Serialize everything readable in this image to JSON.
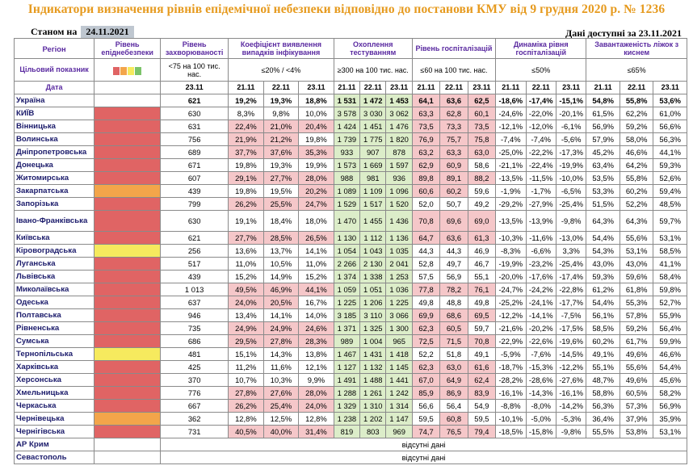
{
  "title": "Індикатори визначення рівнів епідемічної небезпеки відповідно до постанови КМУ від 9 грудня 2020 р. № 1236",
  "as_of_label": "Станом на",
  "as_of_date": "24.11.2021",
  "data_available_label": "Дані доступні за",
  "data_available_date": "23.11.2021",
  "headers": {
    "region": "Регіон",
    "target": "Цільовий показник",
    "date": "Дата",
    "level": "Рівень епіднебезпеки",
    "incidence": "Рівень захворюваності",
    "detection": "Коефіцієнт виявлення випадків інфікування",
    "testing": "Охоплення тестуванням",
    "hosp": "Рівень госпіталізацій",
    "dyn": "Динаміка рівня госпіталізацій",
    "beds": "Завантаженість ліжок з киснем"
  },
  "targets": {
    "incidence": "<75 на 100 тис. нас.",
    "detection": "≤20% / <4%",
    "testing": "≥300 на 100 тис. нас.",
    "hosp": "≤60 на 100 тис. нас.",
    "dyn": "≤50%",
    "beds": "≤65%"
  },
  "level_legend_colors": [
    "#e06464",
    "#f3a54a",
    "#f6ea5e",
    "#7cc36a"
  ],
  "dates": {
    "incidence": "23.11",
    "three": [
      "21.11",
      "22.11",
      "23.11"
    ]
  },
  "missing_text": "відсутні дані",
  "rows": [
    {
      "name": "Україна",
      "level": "",
      "inc": "621",
      "det": [
        "19,2%",
        "19,3%",
        "18,8%"
      ],
      "test": [
        "1 531",
        "1 472",
        "1 453"
      ],
      "hosp": [
        "64,1",
        "63,6",
        "62,5"
      ],
      "dyn": [
        "-18,6%",
        "-17,4%",
        "-15,1%"
      ],
      "beds": [
        "54,8%",
        "55,8%",
        "53,6%"
      ]
    },
    {
      "name": "КИЇВ",
      "level": "red",
      "inc": "630",
      "det": [
        "8,3%",
        "9,8%",
        "10,0%"
      ],
      "test": [
        "3 578",
        "3 030",
        "3 062"
      ],
      "hosp": [
        "63,3",
        "62,8",
        "60,1"
      ],
      "dyn": [
        "-24,6%",
        "-22,0%",
        "-20,1%"
      ],
      "beds": [
        "61,5%",
        "62,2%",
        "61,0%"
      ]
    },
    {
      "name": "Вінницька",
      "level": "red",
      "inc": "631",
      "det": [
        "22,4%",
        "21,0%",
        "20,4%"
      ],
      "test": [
        "1 424",
        "1 451",
        "1 476"
      ],
      "hosp": [
        "73,5",
        "73,3",
        "73,5"
      ],
      "dyn": [
        "-12,1%",
        "-12,0%",
        "-6,1%"
      ],
      "beds": [
        "56,9%",
        "59,2%",
        "56,6%"
      ]
    },
    {
      "name": "Волинська",
      "level": "red",
      "inc": "756",
      "det": [
        "21,9%",
        "21,2%",
        "19,8%"
      ],
      "test": [
        "1 739",
        "1 775",
        "1 820"
      ],
      "hosp": [
        "76,9",
        "75,7",
        "75,8"
      ],
      "dyn": [
        "-7,4%",
        "-7,4%",
        "-5,6%"
      ],
      "beds": [
        "57,9%",
        "58,0%",
        "56,3%"
      ]
    },
    {
      "name": "Дніпропетровська",
      "level": "red",
      "inc": "689",
      "det": [
        "37,7%",
        "37,6%",
        "35,3%"
      ],
      "test": [
        "933",
        "907",
        "878"
      ],
      "hosp": [
        "63,2",
        "63,3",
        "63,0"
      ],
      "dyn": [
        "-25,0%",
        "-22,2%",
        "-17,3%"
      ],
      "beds": [
        "45,2%",
        "46,6%",
        "44,1%"
      ]
    },
    {
      "name": "Донецька",
      "level": "red",
      "inc": "671",
      "det": [
        "19,8%",
        "19,3%",
        "19,9%"
      ],
      "test": [
        "1 573",
        "1 669",
        "1 597"
      ],
      "hosp": [
        "62,9",
        "60,9",
        "58,6"
      ],
      "dyn": [
        "-21,1%",
        "-22,4%",
        "-19,9%"
      ],
      "beds": [
        "63,4%",
        "64,2%",
        "59,3%"
      ]
    },
    {
      "name": "Житомирська",
      "level": "red",
      "inc": "607",
      "det": [
        "29,1%",
        "27,7%",
        "28,0%"
      ],
      "test": [
        "988",
        "981",
        "936"
      ],
      "hosp": [
        "89,8",
        "89,1",
        "88,2"
      ],
      "dyn": [
        "-13,5%",
        "-11,5%",
        "-10,0%"
      ],
      "beds": [
        "53,5%",
        "55,8%",
        "52,6%"
      ]
    },
    {
      "name": "Закарпатська",
      "level": "orange",
      "inc": "439",
      "det": [
        "19,8%",
        "19,5%",
        "20,2%"
      ],
      "test": [
        "1 089",
        "1 109",
        "1 096"
      ],
      "hosp": [
        "60,6",
        "60,2",
        "59,6"
      ],
      "dyn": [
        "-1,9%",
        "-1,7%",
        "-6,5%"
      ],
      "beds": [
        "53,3%",
        "60,2%",
        "59,4%"
      ]
    },
    {
      "name": "Запорізька",
      "level": "red",
      "inc": "799",
      "det": [
        "26,2%",
        "25,5%",
        "24,7%"
      ],
      "test": [
        "1 529",
        "1 517",
        "1 520"
      ],
      "hosp": [
        "52,0",
        "50,7",
        "49,2"
      ],
      "dyn": [
        "-29,2%",
        "-27,9%",
        "-25,4%"
      ],
      "beds": [
        "51,5%",
        "52,2%",
        "48,5%"
      ]
    },
    {
      "name": "Івано-Франківська",
      "level": "red",
      "inc": "630",
      "det": [
        "19,1%",
        "18,4%",
        "18,0%"
      ],
      "test": [
        "1 470",
        "1 455",
        "1 436"
      ],
      "hosp": [
        "70,8",
        "69,6",
        "69,0"
      ],
      "dyn": [
        "-13,5%",
        "-13,9%",
        "-9,8%"
      ],
      "beds": [
        "64,3%",
        "64,3%",
        "59,7%"
      ],
      "tall": true
    },
    {
      "name": "Київська",
      "level": "red",
      "inc": "621",
      "det": [
        "27,7%",
        "28,5%",
        "26,5%"
      ],
      "test": [
        "1 130",
        "1 112",
        "1 136"
      ],
      "hosp": [
        "64,7",
        "63,6",
        "61,3"
      ],
      "dyn": [
        "-10,3%",
        "-11,6%",
        "-13,0%"
      ],
      "beds": [
        "54,4%",
        "55,6%",
        "53,1%"
      ]
    },
    {
      "name": "Кіровоградська",
      "level": "yellow",
      "inc": "256",
      "det": [
        "13,6%",
        "13,7%",
        "14,1%"
      ],
      "test": [
        "1 054",
        "1 043",
        "1 035"
      ],
      "hosp": [
        "44,3",
        "44,3",
        "46,9"
      ],
      "dyn": [
        "-8,3%",
        "-6,6%",
        "3,3%"
      ],
      "beds": [
        "54,3%",
        "53,1%",
        "58,5%"
      ]
    },
    {
      "name": "Луганська",
      "level": "red",
      "inc": "517",
      "det": [
        "11,0%",
        "10,5%",
        "11,0%"
      ],
      "test": [
        "2 266",
        "2 130",
        "2 041"
      ],
      "hosp": [
        "52,8",
        "49,7",
        "46,7"
      ],
      "dyn": [
        "-19,9%",
        "-23,2%",
        "-25,4%"
      ],
      "beds": [
        "43,0%",
        "43,0%",
        "41,1%"
      ]
    },
    {
      "name": "Львівська",
      "level": "red",
      "inc": "439",
      "det": [
        "15,2%",
        "14,9%",
        "15,2%"
      ],
      "test": [
        "1 374",
        "1 338",
        "1 253"
      ],
      "hosp": [
        "57,5",
        "56,9",
        "55,1"
      ],
      "dyn": [
        "-20,0%",
        "-17,6%",
        "-17,4%"
      ],
      "beds": [
        "59,3%",
        "59,6%",
        "58,4%"
      ]
    },
    {
      "name": "Миколаївська",
      "level": "red",
      "inc": "1 013",
      "det": [
        "49,5%",
        "46,9%",
        "44,1%"
      ],
      "test": [
        "1 059",
        "1 051",
        "1 036"
      ],
      "hosp": [
        "77,8",
        "78,2",
        "76,1"
      ],
      "dyn": [
        "-24,7%",
        "-24,2%",
        "-22,8%"
      ],
      "beds": [
        "61,2%",
        "61,8%",
        "59,8%"
      ]
    },
    {
      "name": "Одеська",
      "level": "red",
      "inc": "637",
      "det": [
        "24,0%",
        "20,5%",
        "16,7%"
      ],
      "test": [
        "1 225",
        "1 206",
        "1 225"
      ],
      "hosp": [
        "49,8",
        "48,8",
        "49,8"
      ],
      "dyn": [
        "-25,2%",
        "-24,1%",
        "-17,7%"
      ],
      "beds": [
        "54,4%",
        "55,3%",
        "52,7%"
      ]
    },
    {
      "name": "Полтавська",
      "level": "red",
      "inc": "946",
      "det": [
        "13,4%",
        "14,1%",
        "14,0%"
      ],
      "test": [
        "3 185",
        "3 110",
        "3 066"
      ],
      "hosp": [
        "69,9",
        "68,6",
        "69,5"
      ],
      "dyn": [
        "-12,2%",
        "-14,1%",
        "-7,5%"
      ],
      "beds": [
        "56,1%",
        "57,8%",
        "55,9%"
      ]
    },
    {
      "name": "Рівненська",
      "level": "red",
      "inc": "735",
      "det": [
        "24,9%",
        "24,9%",
        "24,6%"
      ],
      "test": [
        "1 371",
        "1 325",
        "1 300"
      ],
      "hosp": [
        "62,3",
        "60,5",
        "59,7"
      ],
      "dyn": [
        "-21,6%",
        "-20,2%",
        "-17,5%"
      ],
      "beds": [
        "58,5%",
        "59,2%",
        "56,4%"
      ]
    },
    {
      "name": "Сумська",
      "level": "red",
      "inc": "686",
      "det": [
        "29,5%",
        "27,8%",
        "28,3%"
      ],
      "test": [
        "989",
        "1 004",
        "965"
      ],
      "hosp": [
        "72,5",
        "71,5",
        "70,8"
      ],
      "dyn": [
        "-22,9%",
        "-22,6%",
        "-19,6%"
      ],
      "beds": [
        "60,2%",
        "61,7%",
        "59,9%"
      ]
    },
    {
      "name": "Тернопільська",
      "level": "yellow",
      "inc": "481",
      "det": [
        "15,1%",
        "14,3%",
        "13,8%"
      ],
      "test": [
        "1 467",
        "1 431",
        "1 418"
      ],
      "hosp": [
        "52,2",
        "51,8",
        "49,1"
      ],
      "dyn": [
        "-5,9%",
        "-7,6%",
        "-14,5%"
      ],
      "beds": [
        "49,1%",
        "49,6%",
        "46,6%"
      ]
    },
    {
      "name": "Харківська",
      "level": "red",
      "inc": "425",
      "det": [
        "11,2%",
        "11,6%",
        "12,1%"
      ],
      "test": [
        "1 127",
        "1 132",
        "1 145"
      ],
      "hosp": [
        "62,3",
        "63,0",
        "61,6"
      ],
      "dyn": [
        "-18,7%",
        "-15,3%",
        "-12,2%"
      ],
      "beds": [
        "55,1%",
        "55,6%",
        "54,4%"
      ]
    },
    {
      "name": "Херсонська",
      "level": "red",
      "inc": "370",
      "det": [
        "10,7%",
        "10,3%",
        "9,9%"
      ],
      "test": [
        "1 491",
        "1 488",
        "1 441"
      ],
      "hosp": [
        "67,0",
        "64,9",
        "62,4"
      ],
      "dyn": [
        "-28,2%",
        "-28,6%",
        "-27,6%"
      ],
      "beds": [
        "48,7%",
        "49,6%",
        "45,6%"
      ]
    },
    {
      "name": "Хмельницька",
      "level": "red",
      "inc": "776",
      "det": [
        "27,8%",
        "27,6%",
        "28,0%"
      ],
      "test": [
        "1 288",
        "1 261",
        "1 242"
      ],
      "hosp": [
        "85,9",
        "86,9",
        "83,9"
      ],
      "dyn": [
        "-16,1%",
        "-14,3%",
        "-16,1%"
      ],
      "beds": [
        "58,8%",
        "60,5%",
        "58,2%"
      ]
    },
    {
      "name": "Черкаська",
      "level": "red",
      "inc": "667",
      "det": [
        "26,2%",
        "25,4%",
        "24,0%"
      ],
      "test": [
        "1 329",
        "1 310",
        "1 314"
      ],
      "hosp": [
        "56,6",
        "56,4",
        "54,9"
      ],
      "dyn": [
        "-8,8%",
        "-8,0%",
        "-14,2%"
      ],
      "beds": [
        "56,3%",
        "57,3%",
        "56,9%"
      ]
    },
    {
      "name": "Чернівецька",
      "level": "orange",
      "inc": "362",
      "det": [
        "12,8%",
        "12,5%",
        "12,8%"
      ],
      "test": [
        "1 238",
        "1 202",
        "1 147"
      ],
      "hosp": [
        "59,5",
        "60,8",
        "59,5"
      ],
      "dyn": [
        "-10,1%",
        "-5,0%",
        "-5,3%"
      ],
      "beds": [
        "36,4%",
        "37,9%",
        "35,9%"
      ]
    },
    {
      "name": "Чернігівська",
      "level": "red",
      "inc": "731",
      "det": [
        "40,5%",
        "40,0%",
        "31,4%"
      ],
      "test": [
        "819",
        "803",
        "969"
      ],
      "hosp": [
        "74,7",
        "76,5",
        "79,4"
      ],
      "dyn": [
        "-18,5%",
        "-15,8%",
        "-9,8%"
      ],
      "beds": [
        "55,5%",
        "53,8%",
        "53,1%"
      ]
    },
    {
      "name": "АР Крим",
      "missing": true
    },
    {
      "name": "Севастополь",
      "missing": true
    }
  ]
}
